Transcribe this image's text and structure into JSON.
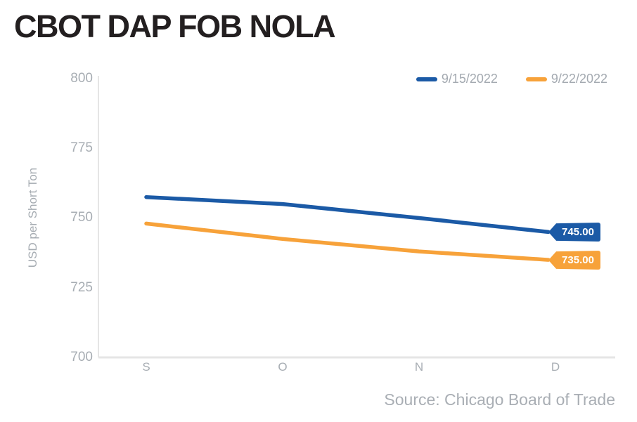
{
  "title": "CBOT DAP FOB NOLA",
  "legend": {
    "items": [
      {
        "label": "9/15/2022",
        "color": "#1b5aa6"
      },
      {
        "label": "9/22/2022",
        "color": "#f7a23a"
      }
    ]
  },
  "y_axis": {
    "title": "USD per Short Ton",
    "ticks": [
      "800",
      "775",
      "750",
      "725",
      "700"
    ]
  },
  "x_axis": {
    "ticks": [
      "S",
      "O",
      "N",
      "D"
    ]
  },
  "end_labels": [
    {
      "value": "745.00",
      "color": "#1b5aa6"
    },
    {
      "value": "735.00",
      "color": "#f7a23a"
    }
  ],
  "source": "Source: Chicago Board of Trade",
  "colors": {
    "series_blue": "#1b5aa6",
    "series_orange": "#f7a23a",
    "axis_line": "#e5e5e5",
    "tick_text": "#a7adb3",
    "title_text": "#231f20"
  },
  "chart_data": {
    "type": "line",
    "categories": [
      "S",
      "O",
      "N",
      "D"
    ],
    "series": [
      {
        "name": "9/15/2022",
        "color": "#1b5aa6",
        "values": [
          757.5,
          755.0,
          750.0,
          745.0
        ]
      },
      {
        "name": "9/22/2022",
        "color": "#f7a23a",
        "values": [
          748.0,
          742.5,
          738.0,
          735.0
        ]
      }
    ],
    "title": "CBOT DAP FOB NOLA",
    "xlabel": "",
    "ylabel": "USD per Short Ton",
    "ylim": [
      700,
      800
    ],
    "yticks": [
      700,
      725,
      750,
      775,
      800
    ],
    "grid": false,
    "legend_position": "top-right",
    "end_labels": [
      "745.00",
      "735.00"
    ],
    "source": "Source: Chicago Board of Trade"
  }
}
